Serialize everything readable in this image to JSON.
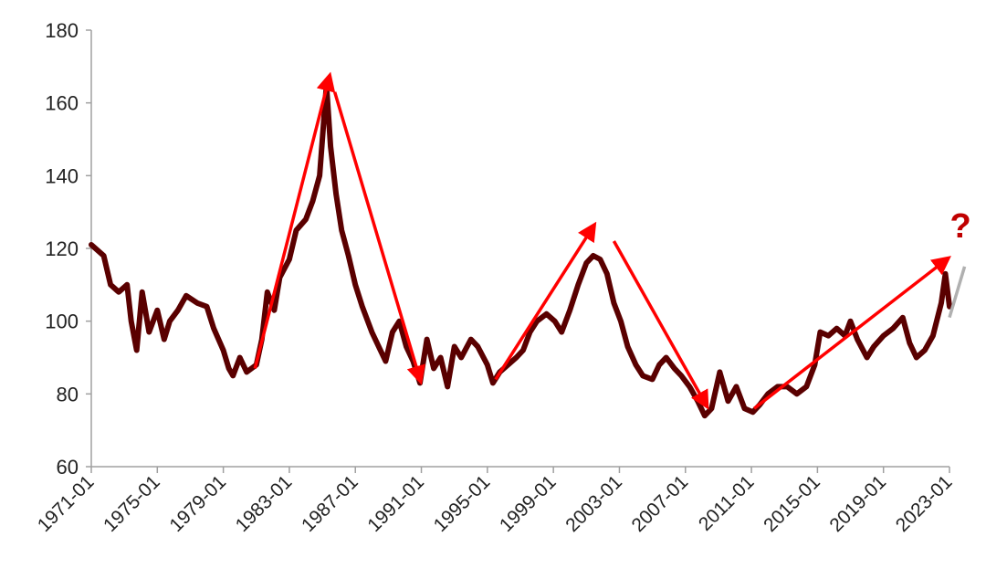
{
  "chart_data": {
    "type": "line",
    "title": "",
    "xlabel": "",
    "ylabel": "",
    "ylim": [
      60,
      180
    ],
    "yticks": [
      60,
      80,
      100,
      120,
      140,
      160,
      180
    ],
    "xlim": [
      "1971-01",
      "2023-01"
    ],
    "xticks": [
      "1971-01",
      "1975-01",
      "1979-01",
      "1983-01",
      "1987-01",
      "1991-01",
      "1995-01",
      "1999-01",
      "2003-01",
      "2007-01",
      "2011-01",
      "2015-01",
      "2019-01",
      "2023-01"
    ],
    "grid": false,
    "series": [
      {
        "color": "#5a0000",
        "points": [
          [
            "1971-01",
            121
          ],
          [
            "1971-10",
            118
          ],
          [
            "1972-03",
            110
          ],
          [
            "1972-09",
            108
          ],
          [
            "1973-03",
            110
          ],
          [
            "1973-06",
            100
          ],
          [
            "1973-10",
            92
          ],
          [
            "1974-02",
            108
          ],
          [
            "1974-07",
            97
          ],
          [
            "1975-01",
            103
          ],
          [
            "1975-06",
            95
          ],
          [
            "1975-10",
            100
          ],
          [
            "1976-04",
            103
          ],
          [
            "1976-10",
            107
          ],
          [
            "1977-06",
            105
          ],
          [
            "1978-01",
            104
          ],
          [
            "1978-06",
            98
          ],
          [
            "1979-01",
            92
          ],
          [
            "1979-05",
            87
          ],
          [
            "1979-08",
            85
          ],
          [
            "1980-01",
            90
          ],
          [
            "1980-06",
            86
          ],
          [
            "1981-01",
            88
          ],
          [
            "1981-05",
            95
          ],
          [
            "1981-09",
            108
          ],
          [
            "1982-02",
            103
          ],
          [
            "1982-06",
            112
          ],
          [
            "1983-01",
            117
          ],
          [
            "1983-06",
            125
          ],
          [
            "1984-01",
            128
          ],
          [
            "1984-06",
            133
          ],
          [
            "1984-11",
            140
          ],
          [
            "1985-02",
            155
          ],
          [
            "1985-04",
            165
          ],
          [
            "1985-07",
            148
          ],
          [
            "1985-11",
            135
          ],
          [
            "1986-03",
            125
          ],
          [
            "1986-08",
            118
          ],
          [
            "1987-01",
            110
          ],
          [
            "1987-06",
            104
          ],
          [
            "1988-01",
            97
          ],
          [
            "1988-06",
            93
          ],
          [
            "1988-11",
            89
          ],
          [
            "1989-04",
            97
          ],
          [
            "1989-09",
            100
          ],
          [
            "1990-02",
            93
          ],
          [
            "1990-07",
            89
          ],
          [
            "1990-12",
            83
          ],
          [
            "1991-05",
            95
          ],
          [
            "1991-10",
            87
          ],
          [
            "1992-03",
            90
          ],
          [
            "1992-08",
            82
          ],
          [
            "1993-01",
            93
          ],
          [
            "1993-06",
            90
          ],
          [
            "1994-01",
            95
          ],
          [
            "1994-06",
            93
          ],
          [
            "1995-01",
            88
          ],
          [
            "1995-05",
            83
          ],
          [
            "1995-10",
            86
          ],
          [
            "1996-04",
            88
          ],
          [
            "1996-10",
            90
          ],
          [
            "1997-03",
            92
          ],
          [
            "1997-08",
            97
          ],
          [
            "1998-01",
            100
          ],
          [
            "1998-08",
            102
          ],
          [
            "1999-02",
            100
          ],
          [
            "1999-07",
            97
          ],
          [
            "2000-01",
            103
          ],
          [
            "2000-07",
            110
          ],
          [
            "2001-01",
            116
          ],
          [
            "2001-06",
            118
          ],
          [
            "2001-11",
            117
          ],
          [
            "2002-04",
            113
          ],
          [
            "2002-09",
            105
          ],
          [
            "2003-02",
            100
          ],
          [
            "2003-07",
            93
          ],
          [
            "2004-01",
            88
          ],
          [
            "2004-06",
            85
          ],
          [
            "2005-01",
            84
          ],
          [
            "2005-06",
            88
          ],
          [
            "2005-11",
            90
          ],
          [
            "2006-05",
            87
          ],
          [
            "2006-10",
            85
          ],
          [
            "2007-04",
            82
          ],
          [
            "2007-10",
            78
          ],
          [
            "2008-03",
            74
          ],
          [
            "2008-08",
            76
          ],
          [
            "2009-02",
            86
          ],
          [
            "2009-08",
            78
          ],
          [
            "2010-02",
            82
          ],
          [
            "2010-08",
            76
          ],
          [
            "2011-02",
            75
          ],
          [
            "2011-07",
            77
          ],
          [
            "2012-01",
            80
          ],
          [
            "2012-08",
            82
          ],
          [
            "2013-03",
            82
          ],
          [
            "2013-10",
            80
          ],
          [
            "2014-05",
            82
          ],
          [
            "2014-11",
            88
          ],
          [
            "2015-03",
            97
          ],
          [
            "2015-09",
            96
          ],
          [
            "2016-03",
            98
          ],
          [
            "2016-09",
            96
          ],
          [
            "2017-01",
            100
          ],
          [
            "2017-06",
            95
          ],
          [
            "2018-01",
            90
          ],
          [
            "2018-06",
            93
          ],
          [
            "2019-01",
            96
          ],
          [
            "2019-08",
            98
          ],
          [
            "2020-03",
            101
          ],
          [
            "2020-08",
            94
          ],
          [
            "2021-01",
            90
          ],
          [
            "2021-07",
            92
          ],
          [
            "2022-01",
            96
          ],
          [
            "2022-07",
            105
          ],
          [
            "2022-10",
            113
          ],
          [
            "2023-01",
            104
          ]
        ]
      }
    ],
    "annotations": [
      {
        "type": "arrow",
        "color": "#ff0000",
        "from": [
          "1980-12",
          87
        ],
        "to": [
          "1985-06",
          167
        ]
      },
      {
        "type": "arrow",
        "color": "#ff0000",
        "from": [
          "1985-10",
          163
        ],
        "to": [
          "1990-12",
          84
        ]
      },
      {
        "type": "arrow",
        "color": "#ff0000",
        "from": [
          "1995-07",
          84
        ],
        "to": [
          "2001-06",
          126
        ]
      },
      {
        "type": "arrow",
        "color": "#ff0000",
        "from": [
          "2002-09",
          122
        ],
        "to": [
          "2008-04",
          77
        ]
      },
      {
        "type": "arrow",
        "color": "#ff0000",
        "from": [
          "2011-03",
          76
        ],
        "to": [
          "2022-11",
          117
        ]
      },
      {
        "type": "line",
        "color": "#b0b0b0",
        "from": [
          "2023-01",
          101
        ],
        "to": [
          "2023-12",
          115
        ]
      }
    ],
    "annotation_text": [
      {
        "text": "?",
        "color": "#c00000",
        "at": [
          "2023-09",
          123
        ]
      }
    ]
  }
}
